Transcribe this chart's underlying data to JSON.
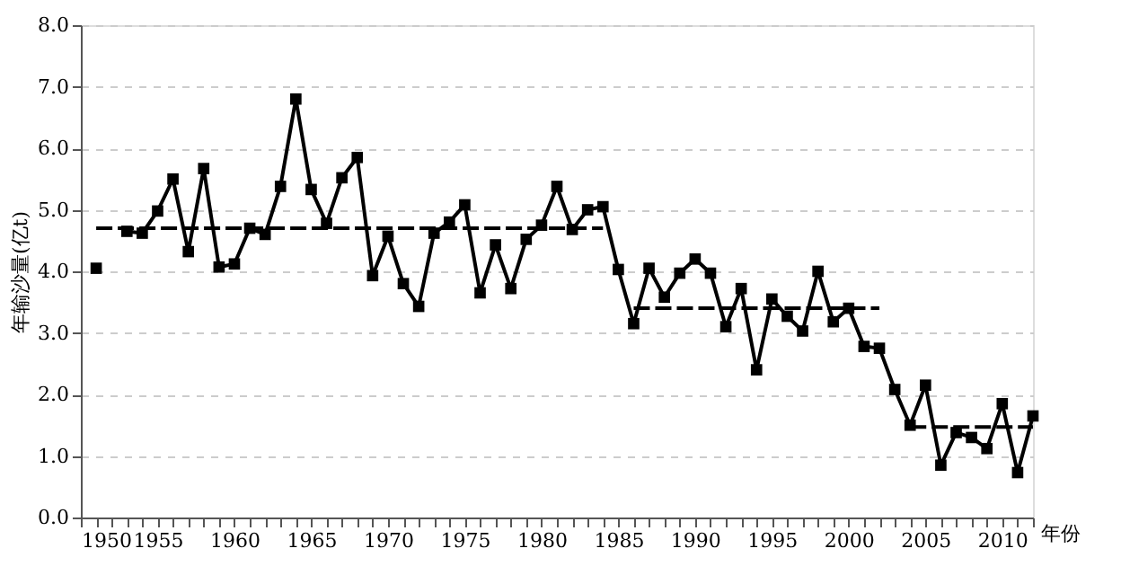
{
  "chart_data": {
    "type": "line",
    "xlabel": "年份",
    "ylabel": "年输沙量(亿t)",
    "series": [
      {
        "color": "#000000",
        "marker": "square",
        "line_style": "solid",
        "x": [
          1951,
          1952,
          1953,
          1954,
          1955,
          1956,
          1957,
          1958,
          1959,
          1960,
          1961,
          1962,
          1963,
          1964,
          1965,
          1966,
          1967,
          1968,
          1969,
          1970,
          1971,
          1972,
          1973,
          1974,
          1975,
          1976,
          1977,
          1978,
          1979,
          1980,
          1981,
          1982,
          1983,
          1984,
          1985,
          1986,
          1987,
          1988,
          1989,
          1990,
          1991,
          1992,
          1993,
          1994,
          1995,
          1996,
          1997,
          1998,
          1999,
          2000,
          2001,
          2002,
          2003,
          2004,
          2005,
          2006,
          2007,
          2008,
          2009,
          2010,
          2011,
          2012
        ],
        "values": [
          4.05,
          null,
          4.65,
          4.62,
          4.98,
          5.5,
          4.32,
          5.67,
          4.07,
          4.12,
          4.7,
          4.6,
          5.38,
          6.8,
          5.33,
          4.78,
          5.52,
          5.85,
          3.93,
          4.57,
          3.8,
          3.43,
          4.62,
          4.8,
          5.08,
          3.65,
          4.43,
          3.72,
          4.52,
          4.75,
          5.38,
          4.68,
          5.0,
          5.05,
          4.03,
          3.15,
          4.05,
          3.58,
          3.97,
          4.2,
          3.97,
          3.1,
          3.72,
          2.4,
          3.55,
          3.27,
          3.03,
          4.0,
          3.18,
          3.4,
          2.78,
          2.75,
          2.08,
          1.5,
          2.15,
          0.85,
          1.38,
          1.3,
          1.12,
          1.85,
          0.73,
          1.65
        ]
      },
      {
        "color": "#000000",
        "marker": "none",
        "line_style": "dashed",
        "x": [
          1951,
          1984
        ],
        "values": [
          4.7,
          4.7
        ]
      },
      {
        "color": "#000000",
        "marker": "none",
        "line_style": "dashed",
        "x": [
          1986,
          2002
        ],
        "values": [
          3.4,
          3.4
        ]
      },
      {
        "color": "#000000",
        "marker": "none",
        "line_style": "dashed",
        "x": [
          2004,
          2012
        ],
        "values": [
          1.47,
          1.47
        ]
      }
    ],
    "xlim": [
      1950,
      2012
    ],
    "xticks": [
      1950,
      {
        "value": 1951,
        "label": null
      },
      {
        "value": 1952,
        "label": null
      },
      {
        "value": 1953,
        "label": null
      },
      {
        "value": 1954,
        "label": null
      },
      1955,
      {
        "value": 1956,
        "label": null
      },
      {
        "value": 1957,
        "label": null
      },
      {
        "value": 1958,
        "label": null
      },
      {
        "value": 1959,
        "label": null
      },
      1960,
      {
        "value": 1961,
        "label": null
      },
      {
        "value": 1962,
        "label": null
      },
      {
        "value": 1963,
        "label": null
      },
      {
        "value": 1964,
        "label": null
      },
      1965,
      {
        "value": 1966,
        "label": null
      },
      {
        "value": 1967,
        "label": null
      },
      {
        "value": 1968,
        "label": null
      },
      {
        "value": 1969,
        "label": null
      },
      1970,
      {
        "value": 1971,
        "label": null
      },
      {
        "value": 1972,
        "label": null
      },
      {
        "value": 1973,
        "label": null
      },
      {
        "value": 1974,
        "label": null
      },
      1975,
      {
        "value": 1976,
        "label": null
      },
      {
        "value": 1977,
        "label": null
      },
      {
        "value": 1978,
        "label": null
      },
      {
        "value": 1979,
        "label": null
      },
      1980,
      {
        "value": 1981,
        "label": null
      },
      {
        "value": 1982,
        "label": null
      },
      {
        "value": 1983,
        "label": null
      },
      {
        "value": 1984,
        "label": null
      },
      1985,
      {
        "value": 1986,
        "label": null
      },
      {
        "value": 1987,
        "label": null
      },
      {
        "value": 1988,
        "label": null
      },
      {
        "value": 1989,
        "label": null
      },
      1990,
      {
        "value": 1991,
        "label": null
      },
      {
        "value": 1992,
        "label": null
      },
      {
        "value": 1993,
        "label": null
      },
      {
        "value": 1994,
        "label": null
      },
      1995,
      {
        "value": 1996,
        "label": null
      },
      {
        "value": 1997,
        "label": null
      },
      {
        "value": 1998,
        "label": null
      },
      {
        "value": 1999,
        "label": null
      },
      2000,
      {
        "value": 2001,
        "label": null
      },
      {
        "value": 2002,
        "label": null
      },
      {
        "value": 2003,
        "label": null
      },
      {
        "value": 2004,
        "label": null
      },
      2005,
      {
        "value": 2006,
        "label": null
      },
      {
        "value": 2007,
        "label": null
      },
      {
        "value": 2008,
        "label": null
      },
      {
        "value": 2009,
        "label": null
      },
      2010,
      {
        "value": 2011,
        "label": null
      },
      {
        "value": 2012,
        "label": null
      }
    ],
    "ylim": [
      0,
      8
    ],
    "yticks": [
      {
        "value": 0,
        "label": "0.0"
      },
      {
        "value": 1,
        "label": "1.0"
      },
      {
        "value": 2,
        "label": "2.0"
      },
      {
        "value": 3,
        "label": "3.0"
      },
      {
        "value": 4,
        "label": "4.0"
      },
      {
        "value": 5,
        "label": "5.0"
      },
      {
        "value": 6,
        "label": "6.0"
      },
      {
        "value": 7,
        "label": "7.0"
      },
      {
        "value": 8,
        "label": "8.0"
      }
    ],
    "grid": "y"
  }
}
